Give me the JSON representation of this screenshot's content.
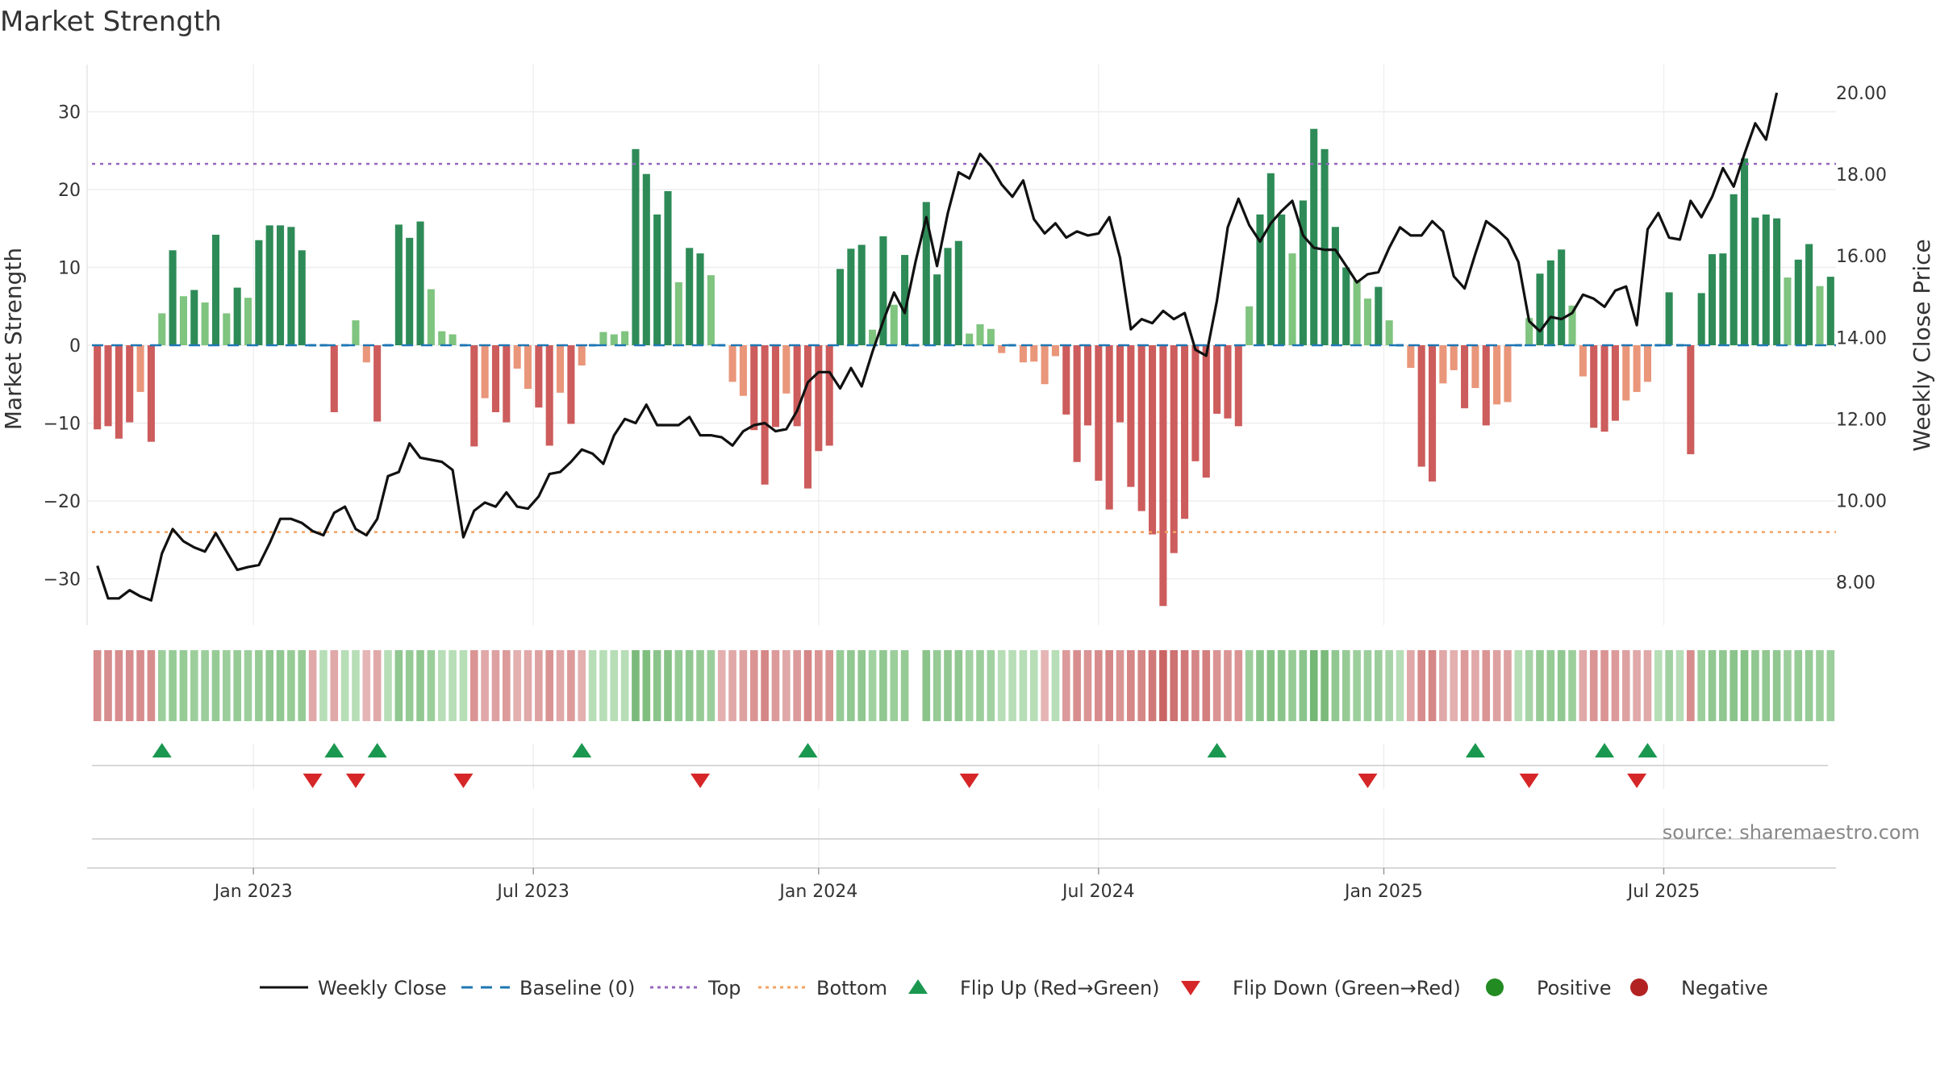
{
  "chart_data": {
    "type": "bar+line",
    "title": "Market Strength",
    "ylabel": "Market Strength",
    "y2label": "Weekly Close Price",
    "ylim": [
      -36,
      36
    ],
    "y2lim": [
      6.3,
      20.5
    ],
    "yticks": [
      "30",
      "20",
      "10",
      "0",
      "−10",
      "−20",
      "−30"
    ],
    "yticks_values": [
      30,
      20,
      10,
      0,
      -10,
      -20,
      -30
    ],
    "y2ticks": [
      "20.00",
      "18.00",
      "16.00",
      "14.00",
      "12.00",
      "10.00",
      "8.00"
    ],
    "y2ticks_values": [
      20,
      18,
      16,
      14,
      12,
      10,
      8
    ],
    "xticks": [
      "Jan 2023",
      "Jul 2023",
      "Jan 2024",
      "Jul 2024",
      "Jan 2025",
      "Jul 2025"
    ],
    "xticks_week_index": [
      15,
      41,
      67.5,
      93.5,
      120,
      146
    ],
    "top_line": 23.3,
    "bottom_line": -24,
    "strength": [
      -10.8,
      -10.4,
      -12,
      -9.9,
      -6,
      -12.4,
      4.1,
      12.2,
      6.3,
      7.1,
      5.5,
      14.2,
      4.1,
      7.4,
      6.1,
      13.5,
      15.4,
      15.4,
      15.2,
      12.2,
      0,
      0,
      -8.6,
      0,
      3.2,
      -2.2,
      -9.8,
      0,
      15.5,
      13.8,
      15.9,
      7.2,
      1.8,
      1.4,
      0,
      -13,
      -6.8,
      -8.6,
      -9.9,
      -3,
      -5.6,
      -8,
      -12.9,
      -6.1,
      -10.1,
      -2.6,
      0,
      1.7,
      1.4,
      1.8,
      25.2,
      22,
      16.8,
      19.8,
      8.1,
      12.5,
      11.8,
      9,
      0,
      -4.7,
      -6.5,
      -10.9,
      -17.9,
      -10.5,
      -6.2,
      -10.4,
      -18.4,
      -13.6,
      -12.9,
      9.8,
      12.4,
      12.9,
      2,
      14,
      5.2,
      11.6,
      0,
      18.4,
      9.1,
      12.5,
      13.4,
      1.5,
      2.7,
      2.1,
      -1,
      0,
      -2.2,
      -2.1,
      -5,
      -1.4,
      -8.9,
      -15,
      -10.3,
      -17.4,
      -21.1,
      -9.9,
      -18.2,
      -21.3,
      -24.3,
      -33.5,
      -26.7,
      -22.3,
      -14.9,
      -17,
      -8.8,
      -9.4,
      -10.4,
      5,
      16.8,
      22.1,
      16.8,
      11.8,
      18.6,
      27.8,
      25.2,
      15.2,
      10,
      8.4,
      6,
      7.5,
      3.2,
      0,
      -2.9,
      -15.6,
      -17.5,
      -4.9,
      -3.2,
      -8.1,
      -5.5,
      -10.3,
      -7.6,
      -7.3,
      0,
      3.5,
      9.2,
      10.9,
      12.3,
      5.1,
      -4,
      -10.6,
      -11.1,
      -9.7,
      -7.1,
      -6,
      -4.7,
      0,
      6.8,
      0,
      -14,
      6.7,
      11.7,
      11.8,
      19.4,
      24,
      16.4,
      16.8,
      16.3,
      8.7,
      11,
      13,
      7.6,
      8.8
    ],
    "close": [
      8.4,
      7.6,
      7.6,
      7.8,
      7.65,
      7.55,
      8.7,
      9.3,
      9.0,
      8.85,
      8.75,
      9.2,
      8.75,
      8.3,
      8.37,
      8.42,
      8.95,
      9.55,
      9.55,
      9.45,
      9.25,
      9.15,
      9.7,
      9.85,
      9.3,
      9.15,
      9.55,
      10.6,
      10.7,
      11.4,
      11.05,
      11.0,
      10.95,
      10.75,
      9.1,
      9.75,
      9.95,
      9.85,
      10.2,
      9.85,
      9.8,
      10.1,
      10.65,
      10.7,
      10.95,
      11.25,
      11.15,
      10.9,
      11.6,
      12.0,
      11.9,
      12.35,
      11.85,
      11.85,
      11.85,
      12.05,
      11.6,
      11.6,
      11.55,
      11.35,
      11.7,
      11.85,
      11.9,
      11.7,
      11.75,
      12.2,
      12.9,
      13.15,
      13.15,
      12.75,
      13.25,
      12.8,
      13.65,
      14.4,
      15.1,
      14.6,
      15.85,
      16.95,
      15.75,
      17.05,
      18.05,
      17.9,
      18.5,
      18.2,
      17.75,
      17.45,
      17.85,
      16.9,
      16.55,
      16.8,
      16.45,
      16.6,
      16.5,
      16.55,
      16.95,
      15.95,
      14.2,
      14.45,
      14.35,
      14.65,
      14.45,
      14.6,
      13.7,
      13.55,
      14.9,
      16.7,
      17.4,
      16.75,
      16.35,
      16.8,
      17.1,
      17.35,
      16.5,
      16.2,
      16.15,
      16.15,
      15.75,
      15.35,
      15.55,
      15.6,
      16.2,
      16.7,
      16.5,
      16.5,
      16.85,
      16.6,
      15.5,
      15.2,
      16.05,
      16.85,
      16.65,
      16.4,
      15.85,
      14.4,
      14.15,
      14.5,
      14.45,
      14.6,
      15.05,
      14.95,
      14.75,
      15.15,
      15.25,
      14.3,
      16.65,
      17.05,
      16.45,
      16.4,
      17.35,
      16.95,
      17.45,
      18.15,
      17.7,
      18.5,
      19.25,
      18.85,
      20.0
    ],
    "strength_blocks": [
      -0.55,
      -0.55,
      -0.55,
      -0.55,
      -0.55,
      -0.55,
      0.45,
      0.5,
      0.5,
      0.45,
      0.45,
      0.5,
      0.45,
      0.5,
      0.45,
      0.5,
      0.55,
      0.55,
      0.5,
      0.5,
      -0.35,
      0.2,
      -0.35,
      0.2,
      0.2,
      -0.25,
      -0.35,
      0.2,
      0.55,
      0.5,
      0.55,
      0.45,
      0.2,
      0.2,
      0.2,
      -0.5,
      -0.35,
      -0.4,
      -0.45,
      -0.3,
      -0.35,
      -0.4,
      -0.5,
      -0.35,
      -0.45,
      -0.3,
      0.2,
      0.2,
      0.2,
      0.2,
      0.75,
      0.7,
      0.6,
      0.65,
      0.5,
      0.55,
      0.5,
      0.45,
      -0.3,
      -0.35,
      -0.4,
      -0.5,
      -0.6,
      -0.45,
      -0.35,
      -0.45,
      -0.6,
      -0.5,
      -0.5,
      0.5,
      0.55,
      0.55,
      0.4,
      0.55,
      0.45,
      0.5,
      null,
      0.6,
      0.5,
      0.55,
      0.55,
      0.4,
      0.45,
      0.4,
      0.2,
      0.2,
      0.2,
      0.2,
      -0.25,
      0.2,
      -0.45,
      -0.55,
      -0.5,
      -0.55,
      -0.6,
      -0.5,
      -0.6,
      -0.6,
      -0.7,
      -0.85,
      -0.75,
      -0.7,
      -0.6,
      -0.65,
      -0.5,
      -0.5,
      -0.5,
      0.45,
      0.6,
      0.65,
      0.6,
      0.5,
      0.6,
      0.8,
      0.75,
      0.55,
      0.5,
      0.45,
      0.45,
      0.45,
      0.35,
      0.2,
      -0.35,
      -0.55,
      -0.6,
      -0.35,
      -0.3,
      -0.45,
      -0.35,
      -0.5,
      -0.4,
      -0.4,
      0.2,
      0.35,
      0.5,
      0.5,
      0.55,
      0.45,
      -0.35,
      -0.5,
      -0.5,
      -0.45,
      -0.4,
      -0.35,
      -0.35,
      0.2,
      0.4,
      0.2,
      -0.55,
      0.45,
      0.55,
      0.55,
      0.6,
      0.65,
      0.55,
      0.55,
      0.55,
      0.45,
      0.5,
      0.5,
      0.45,
      0.45
    ],
    "flip_up_weeks": [
      6,
      22,
      26,
      45,
      66,
      104,
      128,
      140,
      144
    ],
    "flip_down_weeks": [
      20,
      24,
      34,
      56,
      81,
      118,
      133,
      143
    ],
    "legend": [
      "Weekly Close",
      "Baseline (0)",
      "Top",
      "Bottom",
      "Flip Up (Red→Green)",
      "Flip Down (Green→Red)",
      "Positive",
      "Negative"
    ],
    "legend_position": "bottom-center"
  },
  "source": "source: sharemaestro.com",
  "colors": {
    "strong_green": "#2e8b57",
    "light_green": "#7fc47f",
    "strong_red": "#cd5c5c",
    "light_red": "#e9967a",
    "close_line": "#111111",
    "baseline": "#1f77b4",
    "top": "#9467bd",
    "bottom": "#f4a261",
    "flip_up": "#1a9850",
    "flip_down": "#d62728",
    "positive": "#228b22",
    "negative": "#b22222"
  }
}
